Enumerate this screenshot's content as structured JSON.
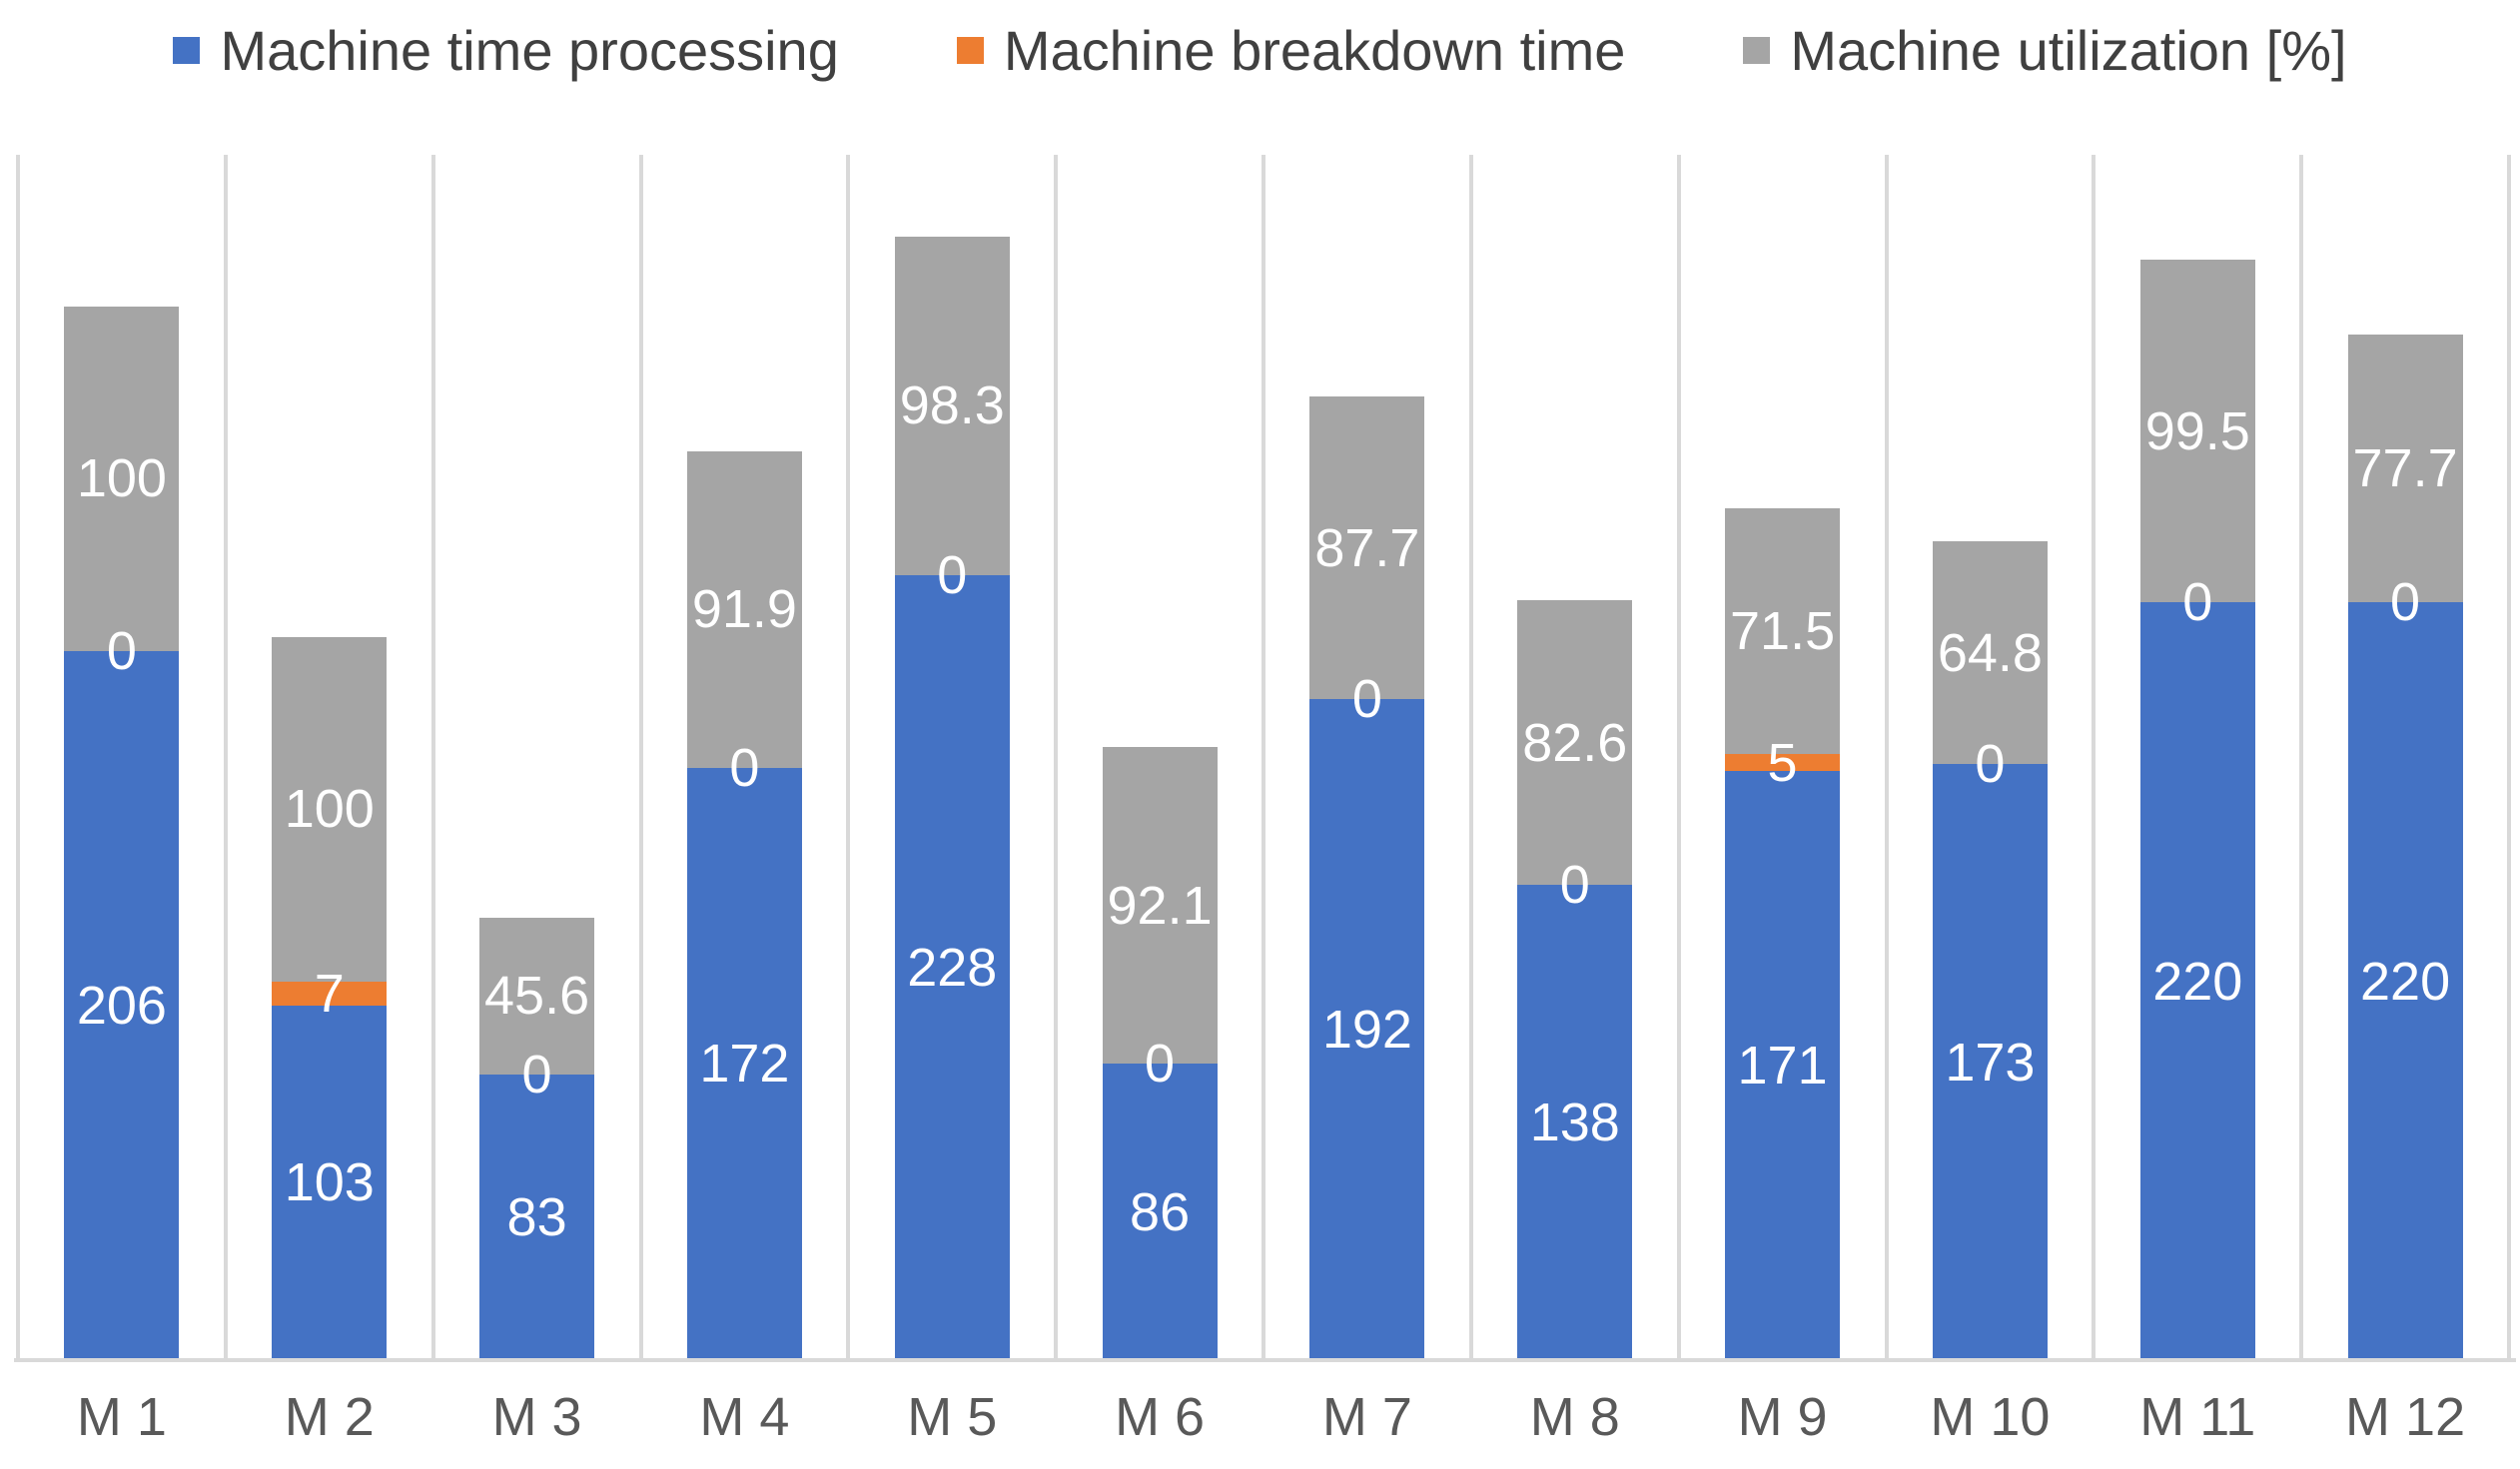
{
  "legend": {
    "items": [
      {
        "label": "Machine time processing",
        "color": "#4472C4"
      },
      {
        "label": "Machine breakdown time",
        "color": "#ED7D31"
      },
      {
        "label": "Machine utilization [%]",
        "color": "#A5A5A5"
      }
    ]
  },
  "chart_data": {
    "type": "bar",
    "stacked": true,
    "orientation": "vertical",
    "title": "",
    "xlabel": "",
    "ylabel": "",
    "categories": [
      "M 1",
      "M 2",
      "M 3",
      "M 4",
      "M 5",
      "M 6",
      "M 7",
      "M 8",
      "M 9",
      "M 10",
      "M 11",
      "M 12"
    ],
    "series": [
      {
        "name": "Machine time processing",
        "color": "#4472C4",
        "values": [
          206,
          103,
          83,
          172,
          228,
          86,
          192,
          138,
          171,
          173,
          220,
          220
        ]
      },
      {
        "name": "Machine breakdown time",
        "color": "#ED7D31",
        "values": [
          0,
          7,
          0,
          0,
          0,
          0,
          0,
          0,
          5,
          0,
          0,
          0
        ]
      },
      {
        "name": "Machine utilization [%]",
        "color": "#A5A5A5",
        "values": [
          100,
          100,
          45.6,
          91.9,
          98.3,
          92.1,
          87.7,
          82.6,
          71.5,
          64.8,
          99.5,
          77.7
        ]
      }
    ],
    "ylim": [
      0,
      350
    ],
    "y_axis_visible": false,
    "grid": "vertical-category-gridlines",
    "gridline_color": "#D9D9D9",
    "legend_position": "top",
    "data_labels": "center-white"
  }
}
